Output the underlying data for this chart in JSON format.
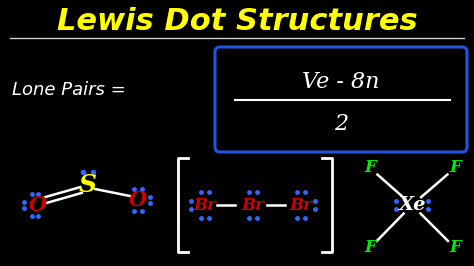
{
  "bg_color": "#000000",
  "title_text": "Lewis Dot Structures",
  "title_color": "#ffff00",
  "lone_pairs_label": "Lone Pairs =",
  "lone_pairs_color": "#ffffff",
  "formula_numerator": "Ve - 8n",
  "formula_denominator": "2",
  "formula_color": "#ffffff",
  "formula_box_color": "#2255dd",
  "s_color": "#ffff00",
  "o_color": "#cc0000",
  "br_color": "#cc0000",
  "f_color": "#00ee00",
  "xe_color": "#ffffff",
  "dot_color": "#3366ff",
  "line_color": "#ffffff",
  "bracket_color": "#ffffff",
  "underline_color": "#cccccc",
  "fig_width": 4.74,
  "fig_height": 2.66,
  "dpi": 100
}
